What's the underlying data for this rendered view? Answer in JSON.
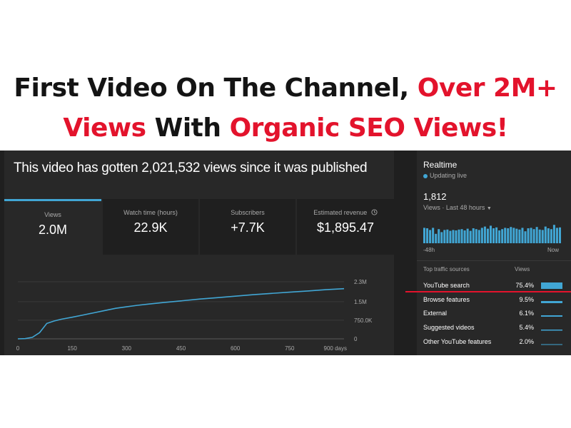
{
  "headline": {
    "line1_black": "First Video On The Channel,",
    "line1_red": "Over 2M+",
    "line2_red1": "Views",
    "line2_black": "With",
    "line2_red2": "Organic SEO Views!"
  },
  "colors": {
    "accent_red": "#e3132c",
    "chart_blue": "#41a6d4",
    "panel_bg": "#282828"
  },
  "analytics": {
    "title": "This video has gotten 2,021,532 views since it was published",
    "cards": [
      {
        "label": "Views",
        "value": "2.0M",
        "active": true
      },
      {
        "label": "Watch time (hours)",
        "value": "22.9K"
      },
      {
        "label": "Subscribers",
        "value": "+7.7K"
      },
      {
        "label": "Estimated revenue",
        "value": "$1,895.47",
        "icon": "clock-icon"
      }
    ]
  },
  "chart_data": {
    "type": "line",
    "x": [
      0,
      20,
      40,
      60,
      80,
      100,
      120,
      150,
      180,
      210,
      240,
      270,
      300,
      330,
      360,
      400,
      450,
      500,
      550,
      600,
      650,
      700,
      750,
      800,
      850,
      900
    ],
    "y": [
      0,
      10000,
      60000,
      250000,
      620000,
      720000,
      790000,
      870000,
      960000,
      1050000,
      1140000,
      1230000,
      1290000,
      1350000,
      1400000,
      1460000,
      1530000,
      1600000,
      1660000,
      1720000,
      1780000,
      1830000,
      1880000,
      1930000,
      1980000,
      2020000
    ],
    "xlim": [
      0,
      900
    ],
    "ylim": [
      0,
      2300000
    ],
    "x_ticks": [
      {
        "v": 0,
        "label": "0"
      },
      {
        "v": 150,
        "label": "150"
      },
      {
        "v": 300,
        "label": "300"
      },
      {
        "v": 450,
        "label": "450"
      },
      {
        "v": 600,
        "label": "600"
      },
      {
        "v": 750,
        "label": "750"
      },
      {
        "v": 900,
        "label": "900 days"
      }
    ],
    "y_ticks": [
      {
        "v": 0,
        "label": "0"
      },
      {
        "v": 750000,
        "label": "750.0K"
      },
      {
        "v": 1500000,
        "label": "1.5M"
      },
      {
        "v": 2300000,
        "label": "2.3M"
      }
    ],
    "grid": true
  },
  "realtime": {
    "title": "Realtime",
    "live": "Updating live",
    "count": "1,812",
    "range": "Views · Last 48 hours",
    "axis_left": "-48h",
    "axis_right": "Now",
    "bars": [
      0.72,
      0.7,
      0.62,
      0.72,
      0.44,
      0.66,
      0.52,
      0.62,
      0.64,
      0.58,
      0.62,
      0.6,
      0.64,
      0.66,
      0.6,
      0.68,
      0.58,
      0.7,
      0.66,
      0.62,
      0.72,
      0.78,
      0.68,
      0.82,
      0.7,
      0.74,
      0.6,
      0.66,
      0.72,
      0.7,
      0.76,
      0.72,
      0.68,
      0.64,
      0.72,
      0.56,
      0.7,
      0.72,
      0.66,
      0.76,
      0.64,
      0.62,
      0.78,
      0.7,
      0.66,
      0.86,
      0.72,
      0.74
    ],
    "sources_header": "Top traffic sources",
    "sources_col": "Views",
    "sources": [
      {
        "name": "YouTube search",
        "pct": "75.4%",
        "share": 0.754
      },
      {
        "name": "Browse features",
        "pct": "9.5%",
        "share": 0.095
      },
      {
        "name": "External",
        "pct": "6.1%",
        "share": 0.061
      },
      {
        "name": "Suggested videos",
        "pct": "5.4%",
        "share": 0.054
      },
      {
        "name": "Other YouTube features",
        "pct": "2.0%",
        "share": 0.02
      }
    ]
  }
}
